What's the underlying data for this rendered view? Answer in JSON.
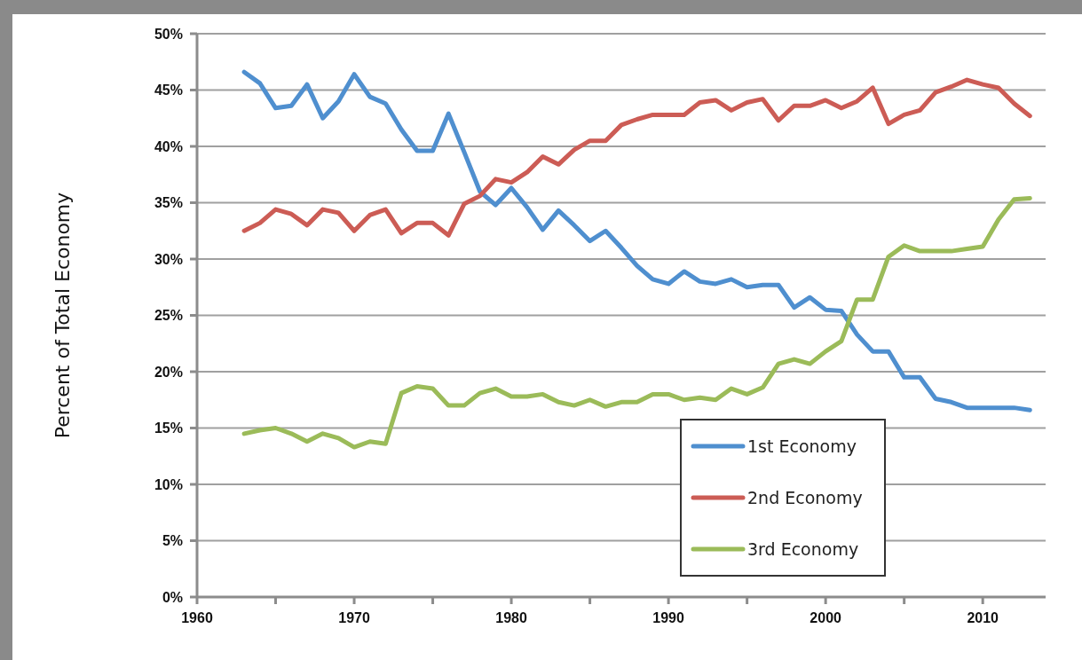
{
  "chart_data": {
    "type": "line",
    "ylabel": "Percent of Total Economy",
    "x": [
      1963,
      1964,
      1965,
      1966,
      1967,
      1968,
      1969,
      1970,
      1971,
      1972,
      1973,
      1974,
      1975,
      1976,
      1977,
      1978,
      1979,
      1980,
      1981,
      1982,
      1983,
      1984,
      1985,
      1986,
      1987,
      1988,
      1989,
      1990,
      1991,
      1992,
      1993,
      1994,
      1995,
      1996,
      1997,
      1998,
      1999,
      2000,
      2001,
      2002,
      2003,
      2004,
      2005,
      2006,
      2007,
      2008,
      2009,
      2010,
      2011,
      2012,
      2013
    ],
    "series": [
      {
        "name": "1st Economy",
        "color": "#4f8fcf",
        "values": [
          46.6,
          45.6,
          43.4,
          43.6,
          45.5,
          42.5,
          44.0,
          46.4,
          44.4,
          43.8,
          41.5,
          39.6,
          39.6,
          42.9,
          39.5,
          36.0,
          34.8,
          36.3,
          34.6,
          32.6,
          34.3,
          33.0,
          31.6,
          32.5,
          31.0,
          29.4,
          28.2,
          27.8,
          28.9,
          28.0,
          27.8,
          28.2,
          27.5,
          27.7,
          27.7,
          25.7,
          26.6,
          25.5,
          25.4,
          23.3,
          21.8,
          21.8,
          19.5,
          19.5,
          17.6,
          17.3,
          16.8,
          16.8,
          16.8,
          16.8,
          16.6
        ]
      },
      {
        "name": "2nd Economy",
        "color": "#cc5c55",
        "values": [
          32.5,
          33.2,
          34.4,
          34.0,
          33.0,
          34.4,
          34.1,
          32.5,
          33.9,
          34.4,
          32.3,
          33.2,
          33.2,
          32.1,
          34.9,
          35.6,
          37.1,
          36.8,
          37.7,
          39.1,
          38.4,
          39.7,
          40.5,
          40.5,
          41.9,
          42.4,
          42.8,
          42.8,
          42.8,
          43.9,
          44.1,
          43.2,
          43.9,
          44.2,
          42.3,
          43.6,
          43.6,
          44.1,
          43.4,
          44.0,
          45.2,
          42.0,
          42.8,
          43.2,
          44.8,
          45.3,
          45.9,
          45.5,
          45.2,
          43.8,
          42.7
        ]
      },
      {
        "name": "3rd Economy",
        "color": "#9bbb59",
        "values": [
          14.5,
          14.8,
          15.0,
          14.5,
          13.8,
          14.5,
          14.1,
          13.3,
          13.8,
          13.6,
          18.1,
          18.7,
          18.5,
          17.0,
          17.0,
          18.1,
          18.5,
          17.8,
          17.8,
          18.0,
          17.3,
          17.0,
          17.5,
          16.9,
          17.3,
          17.3,
          18.0,
          18.0,
          17.5,
          17.7,
          17.5,
          18.5,
          18.0,
          18.6,
          20.7,
          21.1,
          20.7,
          21.8,
          22.7,
          26.4,
          26.4,
          30.2,
          31.2,
          30.7,
          30.7,
          30.7,
          30.9,
          31.1,
          33.5,
          35.3,
          35.4
        ]
      }
    ],
    "xlim": [
      1960,
      2014
    ],
    "xticks": [
      1960,
      {
        "value": 1965,
        "label": null
      },
      1970,
      {
        "value": 1975,
        "label": null
      },
      1980,
      {
        "value": 1985,
        "label": null
      },
      1990,
      {
        "value": 1995,
        "label": null
      },
      2000,
      {
        "value": 2005,
        "label": null
      },
      2010
    ],
    "ylim": [
      0,
      50
    ],
    "yticks": [
      {
        "value": 0,
        "label": "0%"
      },
      {
        "value": 5,
        "label": "5%"
      },
      {
        "value": 10,
        "label": "10%"
      },
      {
        "value": 15,
        "label": "15%"
      },
      {
        "value": 20,
        "label": "20%"
      },
      {
        "value": 25,
        "label": "25%"
      },
      {
        "value": 30,
        "label": "30%"
      },
      {
        "value": 35,
        "label": "35%"
      },
      {
        "value": 40,
        "label": "40%"
      },
      {
        "value": 45,
        "label": "45%"
      },
      {
        "value": 50,
        "label": "50%"
      }
    ],
    "grid": "y",
    "legend": "bottom right",
    "marker": "none",
    "line_style": "solid"
  }
}
